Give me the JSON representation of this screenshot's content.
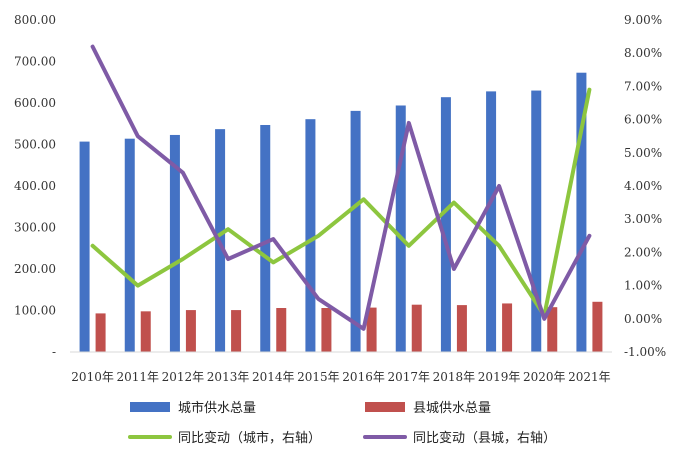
{
  "chart_data": {
    "type": "bar",
    "title": "",
    "categories": [
      "2010年",
      "2011年",
      "2012年",
      "2013年",
      "2014年",
      "2015年",
      "2016年",
      "2017年",
      "2018年",
      "2019年",
      "2020年",
      "2021年"
    ],
    "left_axis": {
      "ticks": [
        "-",
        "100.00",
        "200.00",
        "300.00",
        "400.00",
        "500.00",
        "600.00",
        "700.00",
        "800.00"
      ],
      "ylim": [
        0,
        800
      ]
    },
    "right_axis": {
      "ticks": [
        "-1.00%",
        "0.00%",
        "1.00%",
        "2.00%",
        "3.00%",
        "4.00%",
        "5.00%",
        "6.00%",
        "7.00%",
        "8.00%",
        "9.00%"
      ],
      "ylim": [
        -1,
        9
      ],
      "unit": "%"
    },
    "series": [
      {
        "name": "城市供水总量",
        "kind": "bar",
        "axis": "left",
        "color": "#4472C4",
        "values": [
          507,
          514,
          523,
          537,
          547,
          561,
          581,
          594,
          614,
          628,
          630,
          673
        ]
      },
      {
        "name": "县城供水总量",
        "kind": "bar",
        "axis": "left",
        "color": "#C0504D",
        "values": [
          93,
          98,
          101,
          101,
          106,
          106,
          107,
          114,
          113,
          117,
          108,
          121
        ]
      },
      {
        "name": "同比变动（城市，右轴）",
        "kind": "line",
        "axis": "right",
        "color": "#8DC63F",
        "values": [
          2.2,
          1.0,
          1.8,
          2.7,
          1.7,
          2.5,
          3.6,
          2.2,
          3.5,
          2.2,
          0.1,
          6.9
        ]
      },
      {
        "name": "同比变动（县城，右轴）",
        "kind": "line",
        "axis": "right",
        "color": "#7F5BA6",
        "values": [
          8.2,
          5.5,
          4.4,
          1.8,
          2.4,
          0.6,
          -0.3,
          5.9,
          1.5,
          4.0,
          0.0,
          2.5
        ]
      }
    ],
    "grid": false,
    "legend_position": "bottom"
  }
}
